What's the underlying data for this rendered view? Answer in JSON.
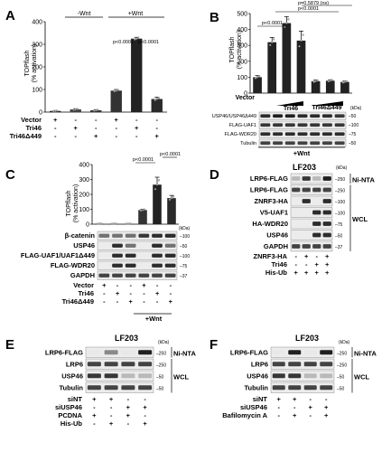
{
  "panels": {
    "A": {
      "letter": "A",
      "ylabel": [
        "TOPflash",
        "(% activation)"
      ],
      "yticks": [
        "0",
        "100",
        "200",
        "300",
        "400"
      ],
      "group_minus": "-Wnt",
      "group_plus": "+Wnt",
      "rows": [
        {
          "label": "Vector",
          "marks": [
            "+",
            "-",
            "-",
            "+",
            "-",
            "-"
          ]
        },
        {
          "label": "Tri46",
          "marks": [
            "-",
            "+",
            "-",
            "-",
            "+",
            "-"
          ]
        },
        {
          "label": "Tri46Δ449",
          "marks": [
            "-",
            "-",
            "+",
            "-",
            "-",
            "+"
          ]
        }
      ],
      "pvals": [
        "p<0.0001",
        "p<0.0001"
      ]
    },
    "B": {
      "letter": "B",
      "ylabel": [
        "TOPflash",
        "(% activation)"
      ],
      "yticks": [
        "0",
        "100",
        "200",
        "300",
        "400",
        "500"
      ],
      "pvals": [
        "p=0.5879 (ns)",
        "p<0.0001",
        "p<0.0001"
      ],
      "xlabels": [
        "Vector",
        "Tri46",
        "Tri46Δ449"
      ],
      "blot_labels": [
        "USP46/USP46Δ449",
        "FLAG-UAF1",
        "FLAG-WDR20",
        "Tubulin"
      ],
      "kda_header": "(kDa)",
      "kda": [
        "50",
        "100",
        "75",
        "50"
      ],
      "footer": "+Wnt"
    },
    "C": {
      "letter": "C",
      "ylabel": [
        "TOPflash",
        "(% activation)"
      ],
      "yticks": [
        "0",
        "100",
        "200",
        "300",
        "400"
      ],
      "pvals": [
        "p<0.0001",
        "p<0.0001"
      ],
      "blot_labels": [
        "β-catenin",
        "USP46",
        "FLAG-UAF1/UAF1Δ449",
        "FLAG-WDR20",
        "GAPDH"
      ],
      "kda_header": "(kDa)",
      "kda": [
        "100",
        "50",
        "100",
        "75",
        "37"
      ],
      "rows": [
        {
          "label": "Vector",
          "marks": [
            "+",
            "-",
            "-",
            "+",
            "-",
            "-"
          ]
        },
        {
          "label": "Tri46",
          "marks": [
            "-",
            "+",
            "-",
            "-",
            "+",
            "-"
          ]
        },
        {
          "label": "Tri46Δ449",
          "marks": [
            "-",
            "-",
            "+",
            "-",
            "-",
            "+"
          ]
        }
      ],
      "footer": "+Wnt"
    },
    "D": {
      "letter": "D",
      "title": "LF203",
      "kda_header": "(kDa)",
      "blot_labels": [
        "LRP6-FLAG",
        "LRP6-FLAG",
        "ZNRF3-HA",
        "V5-UAF1",
        "HA-WDR20",
        "USP46",
        "GAPDH"
      ],
      "kda": [
        "250",
        "250",
        "100",
        "100",
        "75",
        "50",
        "37"
      ],
      "group1": "Ni-NTA",
      "group2": "WCL",
      "rows": [
        {
          "label": "ZNRF3-HA",
          "marks": [
            "-",
            "+",
            "-",
            "+"
          ]
        },
        {
          "label": "Tri46",
          "marks": [
            "-",
            "-",
            "+",
            "+"
          ]
        },
        {
          "label": "His-Ub",
          "marks": [
            "+",
            "+",
            "+",
            "+"
          ]
        }
      ]
    },
    "E": {
      "letter": "E",
      "title": "LF203",
      "kda_header": "(kDa)",
      "blot_labels": [
        "LRP6-FLAG",
        "LRP6",
        "USP46",
        "Tubulin"
      ],
      "kda": [
        "250",
        "250",
        "50",
        "50"
      ],
      "group1": "Ni-NTA",
      "group2": "WCL",
      "rows": [
        {
          "label": "siNT",
          "marks": [
            "+",
            "+",
            "-",
            "-"
          ]
        },
        {
          "label": "siUSP46",
          "marks": [
            "-",
            "-",
            "+",
            "+"
          ]
        },
        {
          "label": "PCDNA",
          "marks": [
            "+",
            "-",
            "+",
            "-"
          ]
        },
        {
          "label": "His-Ub",
          "marks": [
            "-",
            "+",
            "-",
            "+"
          ]
        }
      ]
    },
    "F": {
      "letter": "F",
      "title": "LF203",
      "kda_header": "(kDa)",
      "blot_labels": [
        "LRP6-FLAG",
        "LRP6",
        "USP46",
        "Tubulin"
      ],
      "kda": [
        "250",
        "250",
        "50",
        "50"
      ],
      "group1": "Ni-NTA",
      "group2": "WCL",
      "rows": [
        {
          "label": "siNT",
          "marks": [
            "+",
            "+",
            "-",
            "-"
          ]
        },
        {
          "label": "siUSP46",
          "marks": [
            "-",
            "-",
            "+",
            "+"
          ]
        },
        {
          "label": "Bafilomycin A",
          "marks": [
            "-",
            "+",
            "-",
            "+"
          ]
        }
      ]
    }
  },
  "chart_data": [
    {
      "panel": "A",
      "type": "bar",
      "categories": [
        "1",
        "2",
        "3",
        "4",
        "5",
        "6"
      ],
      "values": [
        5,
        12,
        8,
        95,
        325,
        58
      ],
      "errors": [
        2,
        3,
        3,
        5,
        6,
        8
      ],
      "ylim": [
        0,
        400
      ],
      "colors": [
        "#222222",
        "#444444",
        "#333333",
        "#333333",
        "#222222",
        "#2a2a2a"
      ]
    },
    {
      "panel": "B",
      "type": "bar",
      "categories": [
        "1",
        "2",
        "3",
        "4",
        "5",
        "6",
        "7"
      ],
      "values": [
        100,
        320,
        440,
        330,
        75,
        78,
        70
      ],
      "errors": [
        10,
        30,
        40,
        60,
        8,
        6,
        6
      ],
      "ylim": [
        0,
        500
      ],
      "colors": [
        "#222222",
        "#222222",
        "#222222",
        "#222222",
        "#222222",
        "#222222",
        "#222222"
      ]
    },
    {
      "panel": "C",
      "type": "bar",
      "categories": [
        "1",
        "2",
        "3",
        "4",
        "5",
        "6"
      ],
      "values": [
        3,
        3,
        3,
        95,
        265,
        175
      ],
      "errors": [
        1,
        1,
        1,
        6,
        50,
        18
      ],
      "ylim": [
        0,
        400
      ],
      "colors": [
        "#222222",
        "#222222",
        "#222222",
        "#333333",
        "#222222",
        "#2a2a2a"
      ]
    }
  ],
  "blots": {
    "B": [
      [
        0.9,
        0.95,
        0.95,
        0.9,
        0.9,
        0.9,
        0.85
      ],
      [
        0.85,
        0.85,
        0.85,
        0.85,
        0.85,
        0.85,
        0.85
      ],
      [
        0.9,
        0.9,
        0.9,
        0.9,
        0.9,
        0.9,
        0.9
      ],
      [
        0.8,
        0.8,
        0.8,
        0.8,
        0.8,
        0.8,
        0.8
      ]
    ],
    "C": [
      [
        0.6,
        0.6,
        0.6,
        0.85,
        0.9,
        0.9
      ],
      [
        0.0,
        0.9,
        0.6,
        0.0,
        0.9,
        0.6
      ],
      [
        0.0,
        0.9,
        0.9,
        0.0,
        0.9,
        0.9
      ],
      [
        0.0,
        0.9,
        0.9,
        0.0,
        0.9,
        0.9
      ],
      [
        0.8,
        0.8,
        0.8,
        0.8,
        0.8,
        0.8
      ]
    ],
    "D": [
      [
        0.3,
        0.85,
        0.3,
        0.95
      ],
      [
        0.8,
        0.8,
        0.8,
        0.8
      ],
      [
        0.0,
        0.9,
        0.0,
        0.9
      ],
      [
        0.0,
        0.0,
        0.9,
        0.9
      ],
      [
        0.0,
        0.0,
        0.9,
        0.9
      ],
      [
        0.0,
        0.0,
        0.9,
        0.9
      ],
      [
        0.8,
        0.8,
        0.8,
        0.8
      ]
    ],
    "E": [
      [
        0.1,
        0.5,
        0.1,
        0.95
      ],
      [
        0.8,
        0.8,
        0.8,
        0.8
      ],
      [
        0.85,
        0.85,
        0.3,
        0.3
      ],
      [
        0.8,
        0.8,
        0.8,
        0.8
      ]
    ],
    "F": [
      [
        0.1,
        0.95,
        0.1,
        0.95
      ],
      [
        0.8,
        0.8,
        0.8,
        0.8
      ],
      [
        0.85,
        0.85,
        0.3,
        0.3
      ],
      [
        0.8,
        0.8,
        0.8,
        0.8
      ]
    ]
  }
}
